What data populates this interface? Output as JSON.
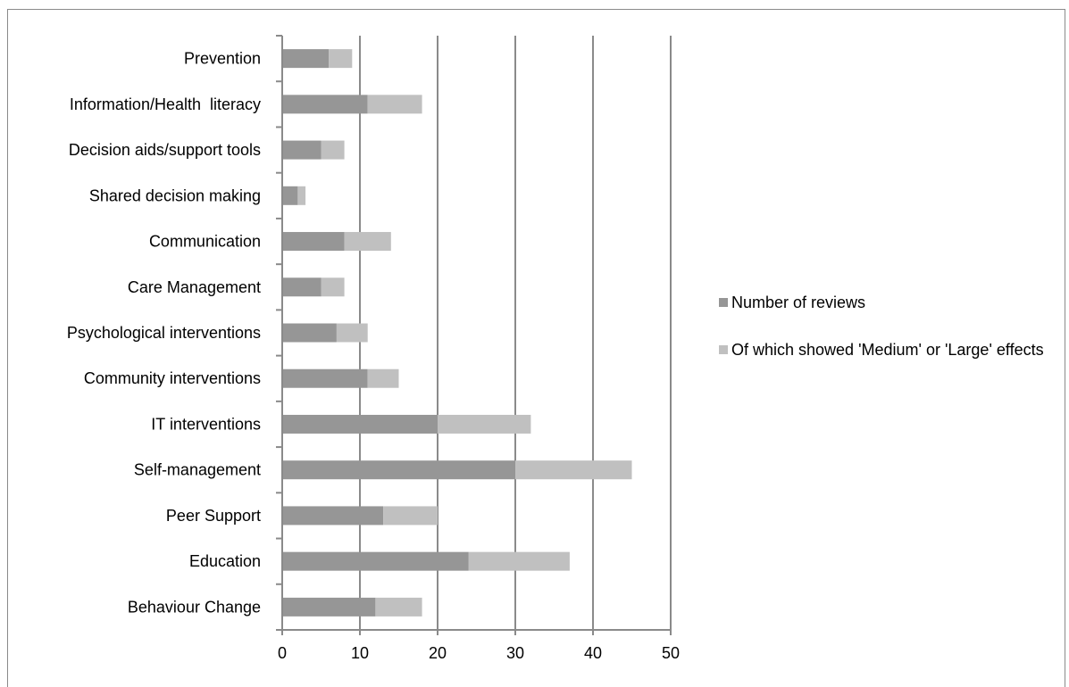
{
  "chart_data": {
    "type": "bar",
    "orientation": "horizontal",
    "stacked": true,
    "title": "",
    "xlabel": "",
    "ylabel": "",
    "xlim": [
      0,
      50
    ],
    "x_ticks": [
      "0",
      "10",
      "20",
      "30",
      "40",
      "50"
    ],
    "grid": true,
    "legend_position": "right",
    "categories": [
      "Prevention",
      "Information/Health  literacy",
      "Decision aids/support tools",
      "Shared decision making",
      "Communication",
      "Care Management",
      "Psychological interventions",
      "Community interventions",
      "IT interventions",
      "Self-management",
      "Peer Support",
      "Education",
      "Behaviour Change"
    ],
    "series": [
      {
        "name": "Number of reviews",
        "color": "#969696",
        "values": [
          6,
          11,
          5,
          2,
          8,
          5,
          7,
          11,
          20,
          30,
          13,
          24,
          12
        ]
      },
      {
        "name": "Of which showed 'Medium' or 'Large' effects",
        "color": "#c0c0c0",
        "values": [
          3,
          7,
          3,
          1,
          6,
          3,
          4,
          4,
          12,
          15,
          7,
          13,
          6
        ]
      }
    ]
  }
}
